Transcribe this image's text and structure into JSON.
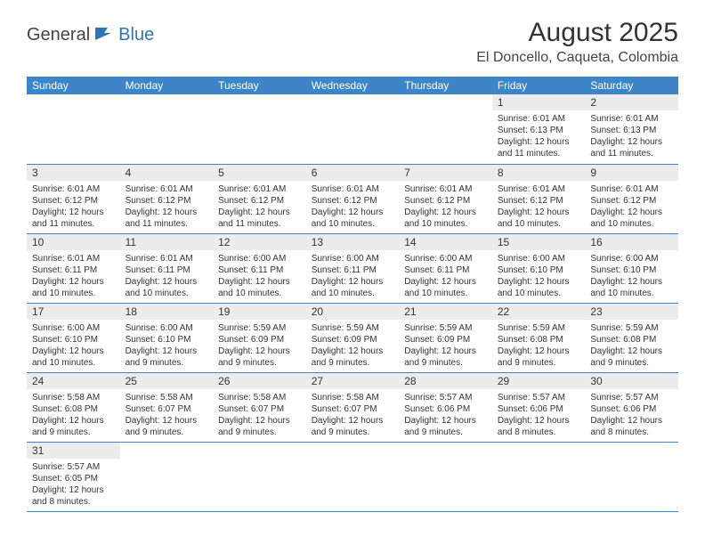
{
  "logo": {
    "part1": "General",
    "part2": "Blue"
  },
  "title": "August 2025",
  "location": "El Doncello, Caqueta, Colombia",
  "headers": [
    "Sunday",
    "Monday",
    "Tuesday",
    "Wednesday",
    "Thursday",
    "Friday",
    "Saturday"
  ],
  "colors": {
    "header_bg": "#3d85c6",
    "header_fg": "#ffffff",
    "daynum_bg": "#ececec",
    "border": "#3d85c6",
    "logo_blue": "#2e75b6",
    "text": "#333333"
  },
  "weeks": [
    [
      null,
      null,
      null,
      null,
      null,
      {
        "n": "1",
        "sr": "Sunrise: 6:01 AM",
        "ss": "Sunset: 6:13 PM",
        "d1": "Daylight: 12 hours",
        "d2": "and 11 minutes."
      },
      {
        "n": "2",
        "sr": "Sunrise: 6:01 AM",
        "ss": "Sunset: 6:13 PM",
        "d1": "Daylight: 12 hours",
        "d2": "and 11 minutes."
      }
    ],
    [
      {
        "n": "3",
        "sr": "Sunrise: 6:01 AM",
        "ss": "Sunset: 6:12 PM",
        "d1": "Daylight: 12 hours",
        "d2": "and 11 minutes."
      },
      {
        "n": "4",
        "sr": "Sunrise: 6:01 AM",
        "ss": "Sunset: 6:12 PM",
        "d1": "Daylight: 12 hours",
        "d2": "and 11 minutes."
      },
      {
        "n": "5",
        "sr": "Sunrise: 6:01 AM",
        "ss": "Sunset: 6:12 PM",
        "d1": "Daylight: 12 hours",
        "d2": "and 11 minutes."
      },
      {
        "n": "6",
        "sr": "Sunrise: 6:01 AM",
        "ss": "Sunset: 6:12 PM",
        "d1": "Daylight: 12 hours",
        "d2": "and 10 minutes."
      },
      {
        "n": "7",
        "sr": "Sunrise: 6:01 AM",
        "ss": "Sunset: 6:12 PM",
        "d1": "Daylight: 12 hours",
        "d2": "and 10 minutes."
      },
      {
        "n": "8",
        "sr": "Sunrise: 6:01 AM",
        "ss": "Sunset: 6:12 PM",
        "d1": "Daylight: 12 hours",
        "d2": "and 10 minutes."
      },
      {
        "n": "9",
        "sr": "Sunrise: 6:01 AM",
        "ss": "Sunset: 6:12 PM",
        "d1": "Daylight: 12 hours",
        "d2": "and 10 minutes."
      }
    ],
    [
      {
        "n": "10",
        "sr": "Sunrise: 6:01 AM",
        "ss": "Sunset: 6:11 PM",
        "d1": "Daylight: 12 hours",
        "d2": "and 10 minutes."
      },
      {
        "n": "11",
        "sr": "Sunrise: 6:01 AM",
        "ss": "Sunset: 6:11 PM",
        "d1": "Daylight: 12 hours",
        "d2": "and 10 minutes."
      },
      {
        "n": "12",
        "sr": "Sunrise: 6:00 AM",
        "ss": "Sunset: 6:11 PM",
        "d1": "Daylight: 12 hours",
        "d2": "and 10 minutes."
      },
      {
        "n": "13",
        "sr": "Sunrise: 6:00 AM",
        "ss": "Sunset: 6:11 PM",
        "d1": "Daylight: 12 hours",
        "d2": "and 10 minutes."
      },
      {
        "n": "14",
        "sr": "Sunrise: 6:00 AM",
        "ss": "Sunset: 6:11 PM",
        "d1": "Daylight: 12 hours",
        "d2": "and 10 minutes."
      },
      {
        "n": "15",
        "sr": "Sunrise: 6:00 AM",
        "ss": "Sunset: 6:10 PM",
        "d1": "Daylight: 12 hours",
        "d2": "and 10 minutes."
      },
      {
        "n": "16",
        "sr": "Sunrise: 6:00 AM",
        "ss": "Sunset: 6:10 PM",
        "d1": "Daylight: 12 hours",
        "d2": "and 10 minutes."
      }
    ],
    [
      {
        "n": "17",
        "sr": "Sunrise: 6:00 AM",
        "ss": "Sunset: 6:10 PM",
        "d1": "Daylight: 12 hours",
        "d2": "and 10 minutes."
      },
      {
        "n": "18",
        "sr": "Sunrise: 6:00 AM",
        "ss": "Sunset: 6:10 PM",
        "d1": "Daylight: 12 hours",
        "d2": "and 9 minutes."
      },
      {
        "n": "19",
        "sr": "Sunrise: 5:59 AM",
        "ss": "Sunset: 6:09 PM",
        "d1": "Daylight: 12 hours",
        "d2": "and 9 minutes."
      },
      {
        "n": "20",
        "sr": "Sunrise: 5:59 AM",
        "ss": "Sunset: 6:09 PM",
        "d1": "Daylight: 12 hours",
        "d2": "and 9 minutes."
      },
      {
        "n": "21",
        "sr": "Sunrise: 5:59 AM",
        "ss": "Sunset: 6:09 PM",
        "d1": "Daylight: 12 hours",
        "d2": "and 9 minutes."
      },
      {
        "n": "22",
        "sr": "Sunrise: 5:59 AM",
        "ss": "Sunset: 6:08 PM",
        "d1": "Daylight: 12 hours",
        "d2": "and 9 minutes."
      },
      {
        "n": "23",
        "sr": "Sunrise: 5:59 AM",
        "ss": "Sunset: 6:08 PM",
        "d1": "Daylight: 12 hours",
        "d2": "and 9 minutes."
      }
    ],
    [
      {
        "n": "24",
        "sr": "Sunrise: 5:58 AM",
        "ss": "Sunset: 6:08 PM",
        "d1": "Daylight: 12 hours",
        "d2": "and 9 minutes."
      },
      {
        "n": "25",
        "sr": "Sunrise: 5:58 AM",
        "ss": "Sunset: 6:07 PM",
        "d1": "Daylight: 12 hours",
        "d2": "and 9 minutes."
      },
      {
        "n": "26",
        "sr": "Sunrise: 5:58 AM",
        "ss": "Sunset: 6:07 PM",
        "d1": "Daylight: 12 hours",
        "d2": "and 9 minutes."
      },
      {
        "n": "27",
        "sr": "Sunrise: 5:58 AM",
        "ss": "Sunset: 6:07 PM",
        "d1": "Daylight: 12 hours",
        "d2": "and 9 minutes."
      },
      {
        "n": "28",
        "sr": "Sunrise: 5:57 AM",
        "ss": "Sunset: 6:06 PM",
        "d1": "Daylight: 12 hours",
        "d2": "and 9 minutes."
      },
      {
        "n": "29",
        "sr": "Sunrise: 5:57 AM",
        "ss": "Sunset: 6:06 PM",
        "d1": "Daylight: 12 hours",
        "d2": "and 8 minutes."
      },
      {
        "n": "30",
        "sr": "Sunrise: 5:57 AM",
        "ss": "Sunset: 6:06 PM",
        "d1": "Daylight: 12 hours",
        "d2": "and 8 minutes."
      }
    ],
    [
      {
        "n": "31",
        "sr": "Sunrise: 5:57 AM",
        "ss": "Sunset: 6:05 PM",
        "d1": "Daylight: 12 hours",
        "d2": "and 8 minutes."
      },
      null,
      null,
      null,
      null,
      null,
      null
    ]
  ]
}
